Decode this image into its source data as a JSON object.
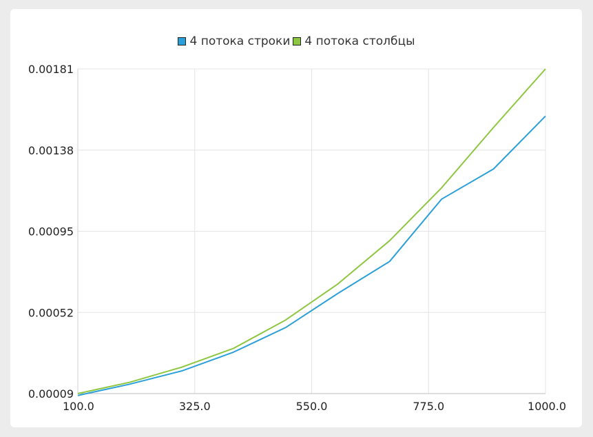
{
  "chart_data": {
    "type": "line",
    "x": [
      100,
      200,
      300,
      400,
      500,
      600,
      700,
      800,
      900,
      1000
    ],
    "xlim": [
      100,
      1000
    ],
    "ylim": [
      9e-05,
      0.00181
    ],
    "x_ticks": [
      "100.0",
      "325.0",
      "550.0",
      "775.0",
      "1000.0"
    ],
    "y_ticks": [
      "0.00181",
      "0.00138",
      "0.00095",
      "0.00052",
      "0.00009"
    ],
    "grid": true,
    "legend_position": "top",
    "series": [
      {
        "name": "4 потока строки",
        "color": "#2a9fd8",
        "values": [
          8e-05,
          0.00014,
          0.00021,
          0.00031,
          0.00044,
          0.00062,
          0.00079,
          0.00112,
          0.00128,
          0.00156
        ]
      },
      {
        "name": "4 потока столбцы",
        "color": "#8dc63f",
        "values": [
          9e-05,
          0.00015,
          0.00023,
          0.00033,
          0.00048,
          0.00067,
          0.0009,
          0.00118,
          0.0015,
          0.00181
        ]
      }
    ]
  }
}
